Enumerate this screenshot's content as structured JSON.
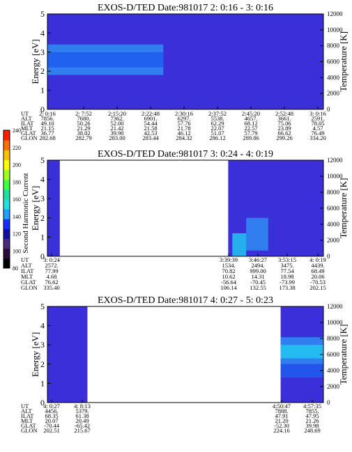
{
  "colors": {
    "background_fill": "#3a2fd8",
    "band_light": "#2f8cf5",
    "band_mid": "#1f5cee",
    "band_cyan": "#22c6f0",
    "colorbar": [
      "#000000",
      "#2a0a3a",
      "#4a2a7a",
      "#1010a0",
      "#1030ff",
      "#20a0ff",
      "#20e0e0",
      "#20e0a0",
      "#40ff40",
      "#a0ff20",
      "#ffff00",
      "#ffc000",
      "#ff7000",
      "#ff2000"
    ]
  },
  "colorbar": {
    "label": "Second Harmonic Current",
    "ticks": [
      "240",
      "220",
      "200",
      "180",
      "160",
      "140",
      "120",
      "100",
      "80"
    ]
  },
  "chart_data": [
    {
      "type": "heatmap",
      "title": "EXOS-D/TED   Date:981017  2: 0:16 - 3: 0:16",
      "ylabel": "Energy [eV]",
      "y2label": "Temperature [K]",
      "ylim": [
        0,
        5
      ],
      "y2lim": [
        0,
        12000
      ],
      "yticks": [
        "0",
        "1",
        "2",
        "3",
        "4",
        "5"
      ],
      "y2ticks": [
        "0",
        "2000",
        "4000",
        "6000",
        "8000",
        "10000",
        "12000"
      ],
      "coverage": [
        [
          0.0,
          1.0
        ]
      ],
      "bands": [
        {
          "from_frac": 0.0,
          "to_frac": 0.42,
          "e_low": 1.8,
          "e_high": 3.4,
          "color": "band_light"
        },
        {
          "from_frac": 0.0,
          "to_frac": 0.42,
          "e_low": 2.2,
          "e_high": 3.0,
          "color": "band_mid"
        }
      ],
      "rows": [
        {
          "label": "UT",
          "values": [
            "2: 0:16",
            "2: 7:52",
            "2:15:20",
            "2:22:48",
            "2:30:16",
            "2:37:52",
            "2:45:20",
            "2:52:48",
            "3: 0:16"
          ]
        },
        {
          "label": "ALT",
          "values": [
            "7856.",
            "7680.",
            "7362.",
            "6901.",
            "6297.",
            "5538.",
            "4657.",
            "3661.",
            "2591."
          ]
        },
        {
          "label": "ILAT",
          "values": [
            "49.10",
            "50.26",
            "52.00",
            "54.44",
            "57.76",
            "62.29",
            "68.12",
            "75.06",
            "78.05"
          ]
        },
        {
          "label": "MLT",
          "values": [
            "21.15",
            "21.29",
            "21.42",
            "21.58",
            "21.78",
            "22.07",
            "22.57",
            "23.89",
            "4.57"
          ]
        },
        {
          "label": "GLAT",
          "values": [
            "36.77",
            "38.02",
            "39.90",
            "42.53",
            "46.12",
            "51.07",
            "57.79",
            "66.62",
            "76.49"
          ]
        },
        {
          "label": "GLON",
          "values": [
            "282.68",
            "282.79",
            "283.00",
            "283.44",
            "284.32",
            "286.12",
            "289.86",
            "299.26",
            "334.20"
          ]
        }
      ]
    },
    {
      "type": "heatmap",
      "title": "EXOS-D/TED   Date:981017  3: 0:24 - 4: 0:19",
      "ylabel": "Energy [eV]",
      "y2label": "Temperature [K]",
      "ylim": [
        0,
        5
      ],
      "y2lim": [
        0,
        12000
      ],
      "yticks": [
        "0",
        "1",
        "2",
        "3",
        "4",
        "5"
      ],
      "y2ticks": [
        "0",
        "2000",
        "4000",
        "6000",
        "8000",
        "10000",
        "12000"
      ],
      "coverage": [
        [
          0.0,
          0.045
        ],
        [
          0.655,
          1.0
        ]
      ],
      "bands": [
        {
          "from_frac": 0.72,
          "to_frac": 0.8,
          "e_low": 0.3,
          "e_high": 2.0,
          "color": "band_light"
        },
        {
          "from_frac": 0.67,
          "to_frac": 0.72,
          "e_low": 0.0,
          "e_high": 1.2,
          "color": "band_cyan"
        }
      ],
      "rows": [
        {
          "label": "UT",
          "values": [
            "3: 0:24",
            "3:39:39",
            "3:46:27",
            "3:53:15",
            "4: 0:19"
          ]
        },
        {
          "label": "ALT",
          "values": [
            "2572.",
            "1534.",
            "2494.",
            "3475.",
            "4439."
          ]
        },
        {
          "label": "ILAT",
          "values": [
            "77.99",
            "70.82",
            "999.00",
            "77.54",
            "68.49"
          ]
        },
        {
          "label": "MLT",
          "values": [
            "4.68",
            "10.62",
            "14.31",
            "18.98",
            "20.06"
          ]
        },
        {
          "label": "GLAT",
          "values": [
            "76.62",
            "-56.64",
            "-70.45",
            "-73.99",
            "-70.53"
          ]
        },
        {
          "label": "GLON",
          "values": [
            "335.40",
            "106.14",
            "132.55",
            "173.38",
            "202.15"
          ]
        }
      ]
    },
    {
      "type": "heatmap",
      "title": "EXOS-D/TED   Date:981017  4: 0:27 - 5: 0:23",
      "ylabel": "Energy [eV]",
      "y2label": "Temperature [K]",
      "ylim": [
        0,
        5
      ],
      "y2lim": [
        0,
        12000
      ],
      "yticks": [
        "0",
        "1",
        "2",
        "3",
        "4",
        "5"
      ],
      "y2ticks": [
        "0",
        "2000",
        "4000",
        "6000",
        "8000",
        "10000",
        "12000"
      ],
      "coverage": [
        [
          0.0,
          0.145
        ],
        [
          0.845,
          1.0
        ]
      ],
      "bands": [
        {
          "from_frac": 0.845,
          "to_frac": 1.0,
          "e_low": 2.0,
          "e_high": 3.4,
          "color": "band_light"
        },
        {
          "from_frac": 0.845,
          "to_frac": 1.0,
          "e_low": 2.3,
          "e_high": 3.0,
          "color": "band_cyan"
        },
        {
          "from_frac": 0.845,
          "to_frac": 1.0,
          "e_low": 1.3,
          "e_high": 2.0,
          "color": "band_mid"
        }
      ],
      "rows": [
        {
          "label": "UT",
          "values": [
            "4: 0:27",
            "4: 8:13",
            "4:50:47",
            "4:57:35"
          ]
        },
        {
          "label": "ALT",
          "values": [
            "4456.",
            "5379.",
            "7888.",
            "7855."
          ]
        },
        {
          "label": "ILAT",
          "values": [
            "68.35",
            "61.38",
            "47.91",
            "47.95"
          ]
        },
        {
          "label": "MLT",
          "values": [
            "20.07",
            "20.49",
            "21.20",
            "21.26"
          ]
        },
        {
          "label": "GLAT",
          "values": [
            "-70.44",
            "-65.42",
            "-52.30",
            "39.98"
          ]
        },
        {
          "label": "GLON",
          "values": [
            "202.51",
            "215.67",
            "224.16",
            "248.69"
          ]
        }
      ]
    }
  ]
}
